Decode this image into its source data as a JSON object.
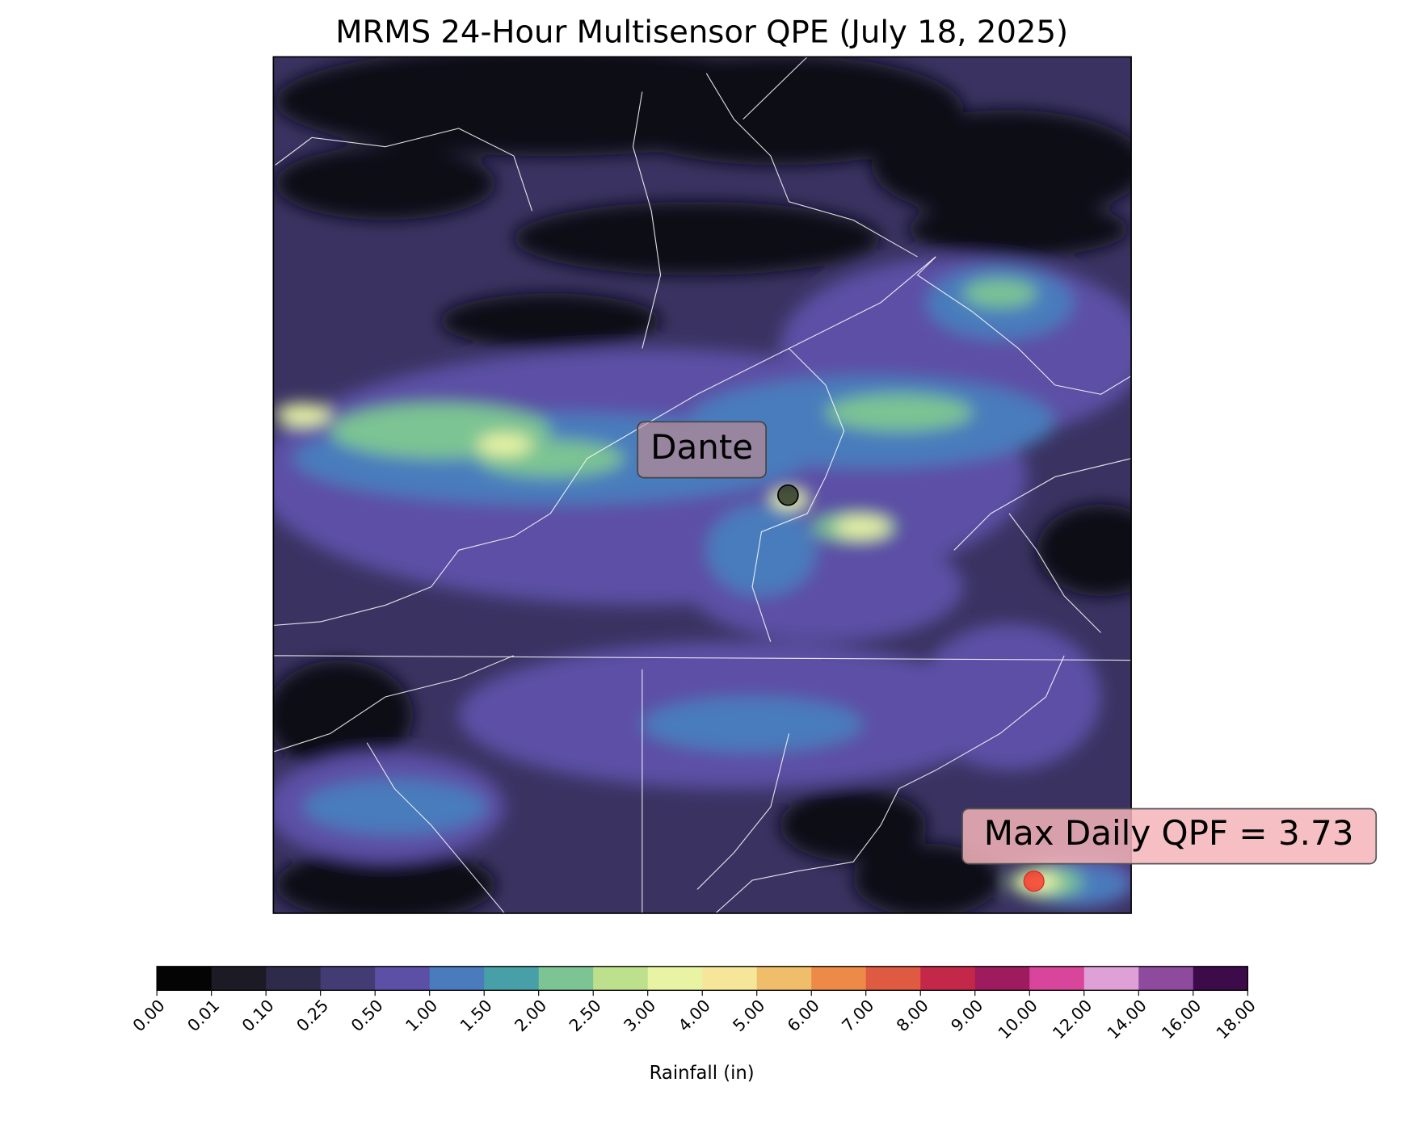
{
  "title": "MRMS 24-Hour Multisensor QPE (July 18, 2025)",
  "annotations": {
    "city": "Dante",
    "max": "Max Daily QPF = 3.73"
  },
  "colorbar": {
    "label": "Rainfall (in)",
    "bounds": [
      {
        "value": 0,
        "label": "0.00"
      },
      {
        "value": 0.01,
        "label": "0.01"
      },
      {
        "value": 0.1,
        "label": "0.10"
      },
      {
        "value": 0.25,
        "label": "0.25"
      },
      {
        "value": 0.5,
        "label": "0.50"
      },
      {
        "value": 1,
        "label": "1.00"
      },
      {
        "value": 1.5,
        "label": "1.50"
      },
      {
        "value": 2,
        "label": "2.00"
      },
      {
        "value": 2.5,
        "label": "2.50"
      },
      {
        "value": 3,
        "label": "3.00"
      },
      {
        "value": 4,
        "label": "4.00"
      },
      {
        "value": 5,
        "label": "5.00"
      },
      {
        "value": 6,
        "label": "6.00"
      },
      {
        "value": 7,
        "label": "7.00"
      },
      {
        "value": 8,
        "label": "8.00"
      },
      {
        "value": 9,
        "label": "9.00"
      },
      {
        "value": 10,
        "label": "10.00"
      },
      {
        "value": 12,
        "label": "12.00"
      },
      {
        "value": 14,
        "label": "14.00"
      },
      {
        "value": 16,
        "label": "16.00"
      },
      {
        "value": 18,
        "label": "18.00"
      }
    ],
    "colors": [
      "#050405",
      "#1c1a24",
      "#2e2a4a",
      "#433c74",
      "#5b50a5",
      "#4a7bbc",
      "#47a0a8",
      "#7cc493",
      "#bde08c",
      "#e8f4a4",
      "#f5e69a",
      "#f0bd6a",
      "#ed8a48",
      "#de5a40",
      "#c42848",
      "#9e1b5e",
      "#d8459a",
      "#dea0d6",
      "#8e4a9c",
      "#3d0a4a"
    ]
  }
}
